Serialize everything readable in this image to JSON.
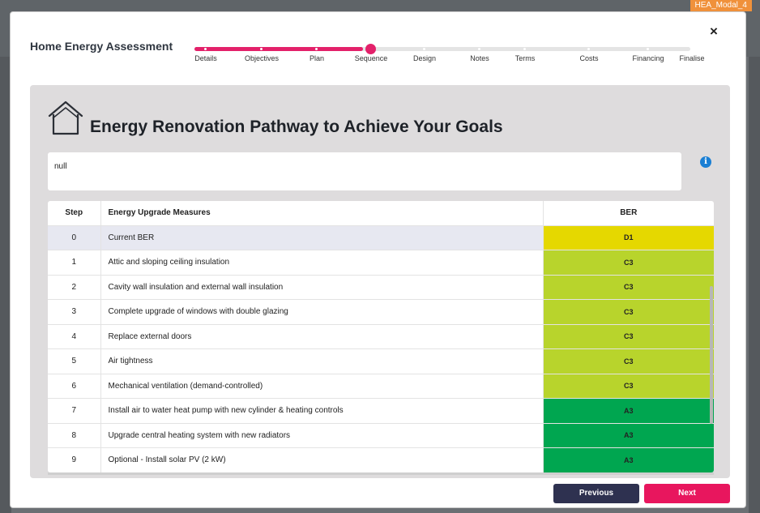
{
  "window_tag": "HEA_Modal_4",
  "modal": {
    "title": "Home Energy Assessment",
    "close_symbol": "×"
  },
  "stepper": {
    "steps": [
      {
        "label": "Details",
        "state": "done"
      },
      {
        "label": "Objectives",
        "state": "done"
      },
      {
        "label": "Plan",
        "state": "done"
      },
      {
        "label": "Sequence",
        "state": "current"
      },
      {
        "label": "Design",
        "state": "todo"
      },
      {
        "label": "Notes",
        "state": "todo"
      },
      {
        "label": "Terms",
        "state": "todo"
      },
      {
        "label": "Costs",
        "state": "todo"
      },
      {
        "label": "Financing",
        "state": "todo"
      },
      {
        "label": "Finalise",
        "state": "todo"
      }
    ]
  },
  "panel": {
    "heading": "Energy Renovation Pathway to Achieve Your Goals",
    "note_text": "null",
    "info_symbol": "i"
  },
  "table": {
    "headers": {
      "step": "Step",
      "measures": "Energy Upgrade Measures",
      "ber": "BER"
    },
    "rows": [
      {
        "step": "0",
        "measure": "Current BER",
        "ber": "D1",
        "ber_color": "#e5d800"
      },
      {
        "step": "1",
        "measure": "Attic and sloping ceiling insulation",
        "ber": "C3",
        "ber_color": "#b8d42c"
      },
      {
        "step": "2",
        "measure": "Cavity wall insulation and external wall insulation",
        "ber": "C3",
        "ber_color": "#b8d42c"
      },
      {
        "step": "3",
        "measure": "Complete upgrade of windows with double glazing",
        "ber": "C3",
        "ber_color": "#b8d42c"
      },
      {
        "step": "4",
        "measure": "Replace external doors",
        "ber": "C3",
        "ber_color": "#b8d42c"
      },
      {
        "step": "5",
        "measure": "Air tightness",
        "ber": "C3",
        "ber_color": "#b8d42c"
      },
      {
        "step": "6",
        "measure": "Mechanical ventilation (demand-controlled)",
        "ber": "C3",
        "ber_color": "#b8d42c"
      },
      {
        "step": "7",
        "measure": "Install air to water heat pump with new cylinder & heating controls",
        "ber": "A3",
        "ber_color": "#00a650"
      },
      {
        "step": "8",
        "measure": "Upgrade central heating system with new radiators",
        "ber": "A3",
        "ber_color": "#00a650"
      },
      {
        "step": "9",
        "measure": "Optional - Install solar PV (2 kW)",
        "ber": "A3",
        "ber_color": "#00a650"
      }
    ]
  },
  "footer": {
    "previous_label": "Previous",
    "next_label": "Next"
  },
  "colors": {
    "accent": "#e3216a",
    "prev_button": "#2e3150",
    "next_button": "#e8165e",
    "info": "#1a7fd4"
  }
}
